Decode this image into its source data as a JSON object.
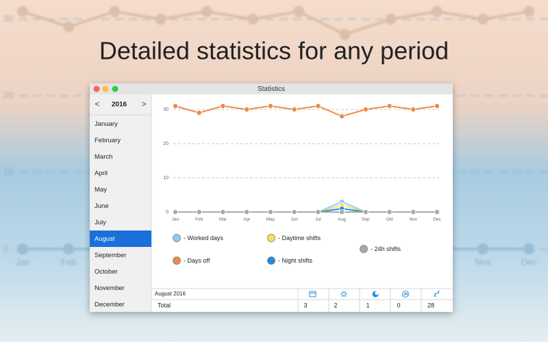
{
  "headline": "Detailed statistics for any period",
  "window": {
    "title": "Statistics",
    "year": "2016",
    "prev": "<",
    "next": ">",
    "months": [
      "January",
      "February",
      "March",
      "April",
      "May",
      "June",
      "July",
      "August",
      "September",
      "October",
      "November",
      "December"
    ]
  },
  "chart_data": {
    "type": "line",
    "categories": [
      "Jan",
      "Feb",
      "Mar",
      "Apr",
      "May",
      "Jun",
      "Jul",
      "Aug",
      "Sep",
      "Okt",
      "Nov",
      "Dec"
    ],
    "ylim": [
      0,
      34
    ],
    "yticks": [
      0,
      10,
      20,
      30
    ],
    "grid": true,
    "series": [
      {
        "name": "- Worked days",
        "color": "#8ecbf6",
        "values": [
          0,
          0,
          0,
          0,
          0,
          0,
          0,
          3,
          0,
          0,
          0,
          0
        ]
      },
      {
        "name": "- Daytime shifts",
        "color": "#f5e451",
        "values": [
          0,
          0,
          0,
          0,
          0,
          0,
          0,
          2,
          0,
          0,
          0,
          0
        ]
      },
      {
        "name": "- 24h shifts",
        "color": "#a9a9a9",
        "values": [
          0,
          0,
          0,
          0,
          0,
          0,
          0,
          0,
          0,
          0,
          0,
          0
        ]
      },
      {
        "name": "- Days off",
        "color": "#f0894a",
        "values": [
          31,
          29,
          31,
          30,
          31,
          30,
          31,
          28,
          30,
          31,
          30,
          31
        ]
      },
      {
        "name": "- Night shifts",
        "color": "#1b8ee2",
        "values": [
          0,
          0,
          0,
          0,
          0,
          0,
          0,
          1,
          0,
          0,
          0,
          0
        ]
      }
    ]
  },
  "table": {
    "caption": "August 2016",
    "rows": [
      [
        "Total",
        "3",
        "2",
        "1",
        "0",
        "28"
      ]
    ]
  }
}
